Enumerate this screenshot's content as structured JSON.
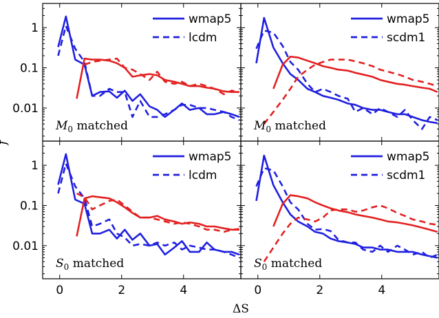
{
  "colors": {
    "blue": "#1f1fe0",
    "red": "#e32020"
  },
  "chart_data": {
    "type": "line",
    "xlabel": "ΔS",
    "ylabel": "f",
    "xlim": [
      -0.55,
      5.85
    ],
    "ylim": [
      0.0015,
      4
    ],
    "yscale": "log",
    "xticks": [
      0,
      2,
      4
    ],
    "xtick_labels": [
      "0",
      "2",
      "4"
    ],
    "yticks": [
      1,
      0.1,
      0.01
    ],
    "ytick_labels": [
      "1",
      "0.1",
      "0.01"
    ],
    "legend_position": "top-right",
    "panels": [
      {
        "id": "top-left",
        "label_text": " matched",
        "label_var": "M",
        "label_sub": "0",
        "legend": [
          "wmap5",
          "lcdm"
        ],
        "series": [
          {
            "name": "wmap5",
            "color": "blue",
            "dash": false,
            "x": [
              -0.05,
              0.2,
              0.5,
              0.8,
              1.05,
              1.3,
              1.6,
              1.85,
              2.1,
              2.35,
              2.6,
              2.9,
              3.15,
              3.4,
              3.7,
              3.95,
              4.2,
              4.5,
              4.75,
              5.0,
              5.3,
              5.55,
              5.8
            ],
            "y": [
              0.33,
              1.9,
              0.16,
              0.12,
              0.02,
              0.025,
              0.026,
              0.018,
              0.027,
              0.015,
              0.022,
              0.011,
              0.009,
              0.006,
              0.009,
              0.013,
              0.009,
              0.01,
              0.007,
              0.007,
              0.008,
              0.007,
              0.006
            ]
          },
          {
            "name": "lcdm",
            "color": "blue",
            "dash": true,
            "x": [
              -0.05,
              0.2,
              0.5,
              0.8,
              1.05,
              1.3,
              1.6,
              1.85,
              2.1,
              2.35,
              2.6,
              2.9,
              3.15,
              3.4,
              3.7,
              3.95,
              4.2,
              4.5,
              4.75,
              5.0,
              5.3,
              5.55,
              5.8
            ],
            "y": [
              0.2,
              1.1,
              0.3,
              0.14,
              0.02,
              0.02,
              0.03,
              0.025,
              0.025,
              0.006,
              0.015,
              0.006,
              0.006,
              0.007,
              0.009,
              0.012,
              0.012,
              0.01,
              0.01,
              0.009,
              0.008,
              0.006,
              0.005
            ]
          },
          {
            "name": "",
            "color": "red",
            "dash": false,
            "x": [
              0.55,
              0.8,
              1.05,
              1.3,
              1.6,
              1.85,
              2.1,
              2.35,
              2.6,
              2.9,
              3.15,
              3.4,
              3.7,
              3.95,
              4.2,
              4.5,
              4.75,
              5.0,
              5.3,
              5.55,
              5.8
            ],
            "y": [
              0.017,
              0.17,
              0.16,
              0.16,
              0.15,
              0.13,
              0.1,
              0.06,
              0.065,
              0.07,
              0.065,
              0.05,
              0.045,
              0.04,
              0.035,
              0.035,
              0.032,
              0.03,
              0.026,
              0.025,
              0.025
            ]
          },
          {
            "name": "",
            "color": "red",
            "dash": true,
            "x": [
              0.8,
              1.05,
              1.3,
              1.6,
              1.85,
              2.1,
              2.35,
              2.6,
              2.9,
              3.15,
              3.4,
              3.7,
              3.95,
              4.2,
              4.5,
              4.75,
              5.0,
              5.3,
              5.55,
              5.8
            ],
            "y": [
              0.12,
              0.14,
              0.15,
              0.16,
              0.17,
              0.1,
              0.09,
              0.07,
              0.05,
              0.08,
              0.045,
              0.04,
              0.045,
              0.035,
              0.04,
              0.035,
              0.03,
              0.022,
              0.027,
              0.025
            ]
          }
        ]
      },
      {
        "id": "top-right",
        "label_text": " matched",
        "label_var": "M",
        "label_sub": "0",
        "legend": [
          "wmap5",
          "scdm1"
        ],
        "series": [
          {
            "name": "wmap5",
            "color": "blue",
            "dash": false,
            "x": [
              -0.05,
              0.2,
              0.5,
              0.8,
              1.05,
              1.3,
              1.6,
              1.85,
              2.1,
              2.35,
              2.6,
              2.9,
              3.15,
              3.4,
              3.7,
              3.95,
              4.2,
              4.5,
              4.75,
              5.0,
              5.3,
              5.55,
              5.8
            ],
            "y": [
              0.13,
              1.75,
              0.32,
              0.13,
              0.07,
              0.05,
              0.03,
              0.025,
              0.02,
              0.018,
              0.016,
              0.013,
              0.012,
              0.01,
              0.009,
              0.009,
              0.008,
              0.007,
              0.007,
              0.006,
              0.005,
              0.0045,
              0.0042
            ]
          },
          {
            "name": "scdm1",
            "color": "blue",
            "dash": true,
            "x": [
              -0.05,
              0.2,
              0.5,
              0.8,
              1.05,
              1.3,
              1.6,
              1.85,
              2.1,
              2.35,
              2.6,
              2.9,
              3.15,
              3.4,
              3.7,
              3.95,
              4.2,
              4.5,
              4.75,
              5.0,
              5.3,
              5.55,
              5.8
            ],
            "y": [
              0.3,
              0.85,
              0.75,
              0.35,
              0.14,
              0.09,
              0.04,
              0.025,
              0.03,
              0.025,
              0.02,
              0.017,
              0.008,
              0.01,
              0.007,
              0.01,
              0.008,
              0.006,
              0.009,
              0.005,
              0.003,
              0.006,
              0.005
            ]
          },
          {
            "name": "",
            "color": "red",
            "dash": false,
            "x": [
              0.5,
              0.8,
              1.05,
              1.3,
              1.6,
              1.85,
              2.1,
              2.35,
              2.6,
              2.9,
              3.15,
              3.4,
              3.7,
              3.95,
              4.2,
              4.5,
              4.75,
              5.0,
              5.3,
              5.55,
              5.8
            ],
            "y": [
              0.03,
              0.12,
              0.19,
              0.18,
              0.15,
              0.13,
              0.11,
              0.1,
              0.09,
              0.085,
              0.075,
              0.068,
              0.06,
              0.05,
              0.045,
              0.04,
              0.038,
              0.035,
              0.032,
              0.03,
              0.025
            ]
          },
          {
            "name": "",
            "color": "red",
            "dash": true,
            "x": [
              0.2,
              0.5,
              0.8,
              1.05,
              1.3,
              1.6,
              1.85,
              2.1,
              2.35,
              2.6,
              2.9,
              3.15,
              3.4,
              3.7,
              3.95,
              4.2,
              4.5,
              4.75,
              5.0,
              5.3,
              5.55,
              5.8
            ],
            "y": [
              0.004,
              0.008,
              0.016,
              0.03,
              0.06,
              0.09,
              0.12,
              0.14,
              0.16,
              0.16,
              0.16,
              0.145,
              0.13,
              0.11,
              0.09,
              0.08,
              0.07,
              0.06,
              0.05,
              0.045,
              0.04,
              0.035
            ]
          }
        ]
      },
      {
        "id": "bottom-left",
        "label_text": " matched",
        "label_var": "S",
        "label_sub": "0",
        "legend": [
          "wmap5",
          "lcdm"
        ],
        "series": [
          {
            "name": "wmap5",
            "color": "blue",
            "dash": false,
            "x": [
              -0.05,
              0.2,
              0.5,
              0.8,
              1.05,
              1.3,
              1.6,
              1.85,
              2.1,
              2.35,
              2.6,
              2.9,
              3.15,
              3.4,
              3.7,
              3.95,
              4.2,
              4.5,
              4.75,
              5.0,
              5.3,
              5.55,
              5.8
            ],
            "y": [
              0.33,
              1.9,
              0.14,
              0.11,
              0.02,
              0.02,
              0.025,
              0.015,
              0.025,
              0.014,
              0.02,
              0.01,
              0.011,
              0.006,
              0.009,
              0.013,
              0.007,
              0.007,
              0.012,
              0.008,
              0.007,
              0.007,
              0.006
            ]
          },
          {
            "name": "lcdm",
            "color": "blue",
            "dash": true,
            "x": [
              -0.05,
              0.2,
              0.5,
              0.8,
              1.05,
              1.3,
              1.6,
              1.85,
              2.1,
              2.35,
              2.6,
              2.9,
              3.15,
              3.4,
              3.7,
              3.95,
              4.2,
              4.5,
              4.75,
              5.0,
              5.3,
              5.55,
              5.8
            ],
            "y": [
              0.2,
              1.1,
              0.3,
              0.15,
              0.03,
              0.035,
              0.045,
              0.02,
              0.016,
              0.01,
              0.011,
              0.01,
              0.012,
              0.01,
              0.012,
              0.008,
              0.01,
              0.009,
              0.008,
              0.008,
              0.007,
              0.006,
              0.005
            ]
          },
          {
            "name": "",
            "color": "red",
            "dash": false,
            "x": [
              0.55,
              0.8,
              1.05,
              1.3,
              1.6,
              1.85,
              2.1,
              2.35,
              2.6,
              2.9,
              3.15,
              3.4,
              3.7,
              3.95,
              4.2,
              4.5,
              4.75,
              5.0,
              5.3,
              5.55,
              5.8
            ],
            "y": [
              0.017,
              0.15,
              0.17,
              0.16,
              0.15,
              0.12,
              0.09,
              0.065,
              0.05,
              0.05,
              0.055,
              0.045,
              0.04,
              0.035,
              0.038,
              0.035,
              0.03,
              0.03,
              0.027,
              0.025,
              0.025
            ]
          },
          {
            "name": "",
            "color": "red",
            "dash": true,
            "x": [
              0.55,
              0.8,
              1.05,
              1.3,
              1.6,
              1.85,
              2.1,
              2.35,
              2.6,
              2.9,
              3.15,
              3.4,
              3.7,
              3.95,
              4.2,
              4.5,
              4.75,
              5.0,
              5.3,
              5.55,
              5.8
            ],
            "y": [
              0.2,
              0.16,
              0.08,
              0.1,
              0.13,
              0.14,
              0.1,
              0.07,
              0.05,
              0.05,
              0.045,
              0.04,
              0.035,
              0.038,
              0.035,
              0.03,
              0.025,
              0.025,
              0.022,
              0.025,
              0.026
            ]
          }
        ]
      },
      {
        "id": "bottom-right",
        "label_text": " matched",
        "label_var": "S",
        "label_sub": "0",
        "legend": [
          "wmap5",
          "scdm1"
        ],
        "series": [
          {
            "name": "wmap5",
            "color": "blue",
            "dash": false,
            "x": [
              -0.05,
              0.2,
              0.5,
              0.8,
              1.05,
              1.3,
              1.6,
              1.85,
              2.1,
              2.35,
              2.6,
              2.9,
              3.15,
              3.4,
              3.7,
              3.95,
              4.2,
              4.5,
              4.75,
              5.0,
              5.3,
              5.55,
              5.8
            ],
            "y": [
              0.13,
              1.75,
              0.32,
              0.12,
              0.06,
              0.04,
              0.03,
              0.022,
              0.02,
              0.015,
              0.013,
              0.012,
              0.011,
              0.009,
              0.009,
              0.008,
              0.008,
              0.007,
              0.007,
              0.007,
              0.006,
              0.0055,
              0.005
            ]
          },
          {
            "name": "scdm1",
            "color": "blue",
            "dash": true,
            "x": [
              -0.05,
              0.2,
              0.5,
              0.8,
              1.05,
              1.3,
              1.6,
              1.85,
              2.1,
              2.35,
              2.6,
              2.9,
              3.15,
              3.4,
              3.7,
              3.95,
              4.2,
              4.5,
              4.75,
              5.0,
              5.3,
              5.55,
              5.8
            ],
            "y": [
              0.3,
              0.85,
              0.75,
              0.3,
              0.12,
              0.08,
              0.035,
              0.025,
              0.026,
              0.023,
              0.014,
              0.012,
              0.012,
              0.008,
              0.007,
              0.01,
              0.007,
              0.01,
              0.008,
              0.006,
              0.007,
              0.005,
              0.006
            ]
          },
          {
            "name": "",
            "color": "red",
            "dash": false,
            "x": [
              0.5,
              0.8,
              1.05,
              1.3,
              1.6,
              1.85,
              2.1,
              2.35,
              2.6,
              2.9,
              3.15,
              3.4,
              3.7,
              3.95,
              4.2,
              4.5,
              4.75,
              5.0,
              5.3,
              5.55,
              5.8
            ],
            "y": [
              0.03,
              0.11,
              0.18,
              0.17,
              0.15,
              0.12,
              0.1,
              0.085,
              0.075,
              0.068,
              0.06,
              0.055,
              0.05,
              0.045,
              0.04,
              0.038,
              0.035,
              0.032,
              0.028,
              0.025,
              0.022
            ]
          },
          {
            "name": "",
            "color": "red",
            "dash": true,
            "x": [
              0.2,
              0.5,
              0.8,
              1.05,
              1.3,
              1.6,
              1.85,
              2.1,
              2.35,
              2.6,
              2.9,
              3.15,
              3.4,
              3.7,
              3.95,
              4.2,
              4.5,
              4.75,
              5.0,
              5.3,
              5.55,
              5.8
            ],
            "y": [
              0.004,
              0.009,
              0.02,
              0.035,
              0.05,
              0.045,
              0.04,
              0.05,
              0.075,
              0.08,
              0.08,
              0.07,
              0.075,
              0.09,
              0.1,
              0.085,
              0.065,
              0.055,
              0.045,
              0.04,
              0.035,
              0.033
            ]
          }
        ]
      }
    ]
  }
}
